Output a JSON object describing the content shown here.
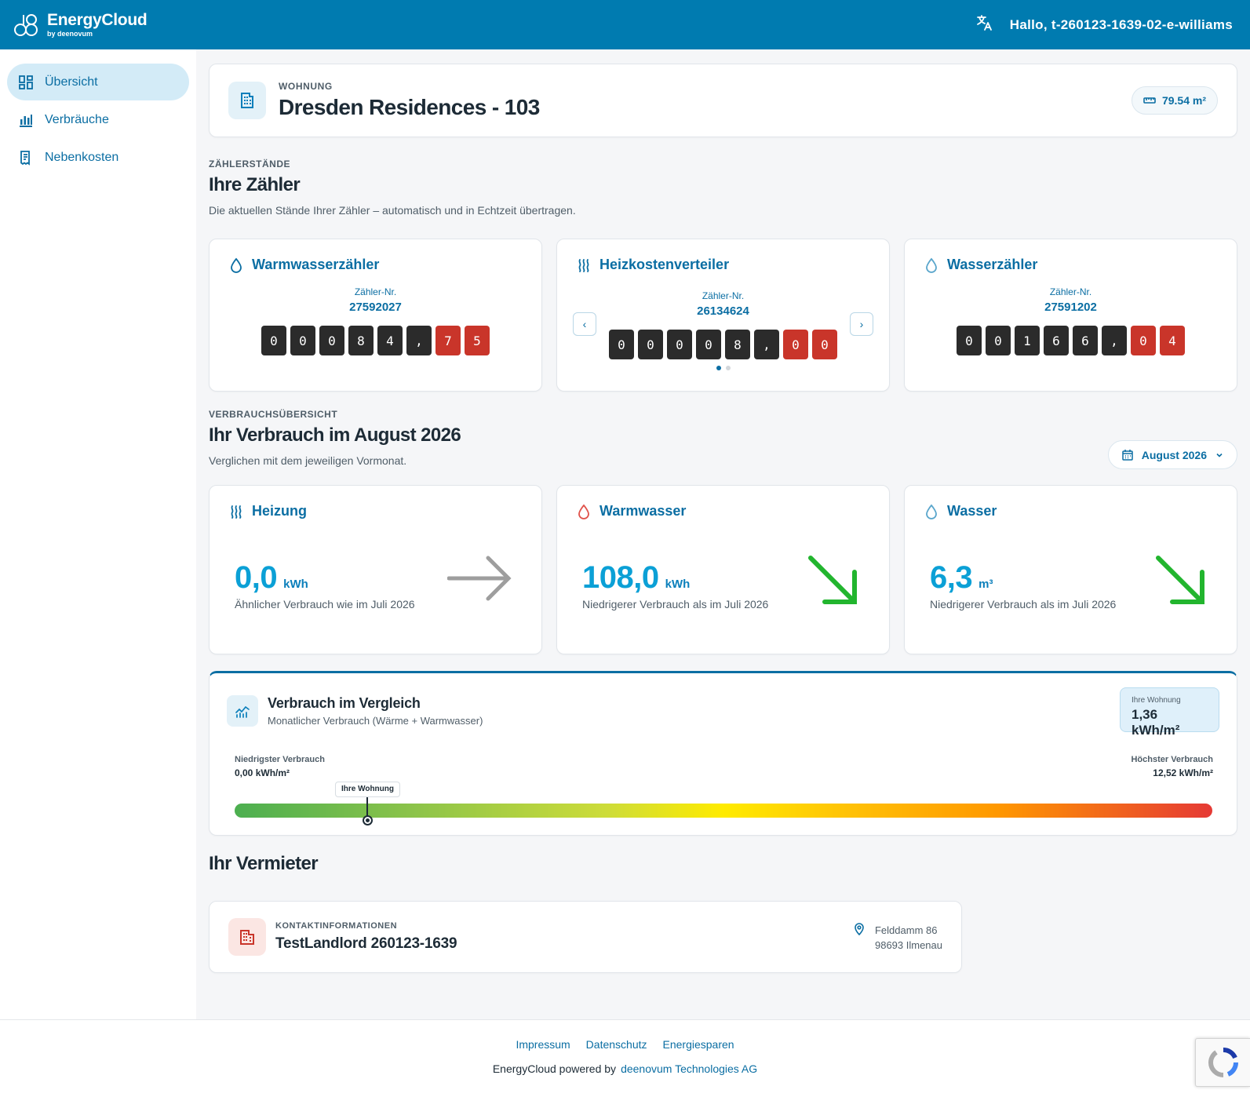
{
  "header": {
    "brand_name": "EnergyCloud",
    "brand_by": "by deenovum",
    "greeting": "Hallo, t-260123-1639-02-e-williams",
    "translate_icon": "translate-icon",
    "bg_color": "#007bb0"
  },
  "sidebar": {
    "items": [
      {
        "label": "Übersicht",
        "icon": "dashboard-icon",
        "active": true
      },
      {
        "label": "Verbräuche",
        "icon": "bar-chart-icon",
        "active": false
      },
      {
        "label": "Nebenkosten",
        "icon": "receipt-icon",
        "active": false
      }
    ]
  },
  "apartment": {
    "eyebrow": "WOHNUNG",
    "title": "Dresden Residences - 103",
    "area": "79.54 m²"
  },
  "meters_section": {
    "eyebrow": "ZÄHLERSTÄNDE",
    "title": "Ihre Zähler",
    "subtitle": "Die aktuellen Stände Ihrer Zähler – automatisch und in Echtzeit übertragen.",
    "number_label": "Zähler-Nr.",
    "meters": [
      {
        "title": "Warmwasserzähler",
        "number": "27592027",
        "digits": [
          "0",
          "0",
          "0",
          "8",
          "4",
          ",",
          "7",
          "5"
        ],
        "red_from": 6,
        "icon": "water-drop-icon"
      },
      {
        "title": "Heizkostenverteiler",
        "number": "26134624",
        "digits": [
          "0",
          "0",
          "0",
          "0",
          "8",
          ",",
          "0",
          "0"
        ],
        "red_from": 6,
        "icon": "heat-waves-icon"
      },
      {
        "title": "Wasserzähler",
        "number": "27591202",
        "digits": [
          "0",
          "0",
          "1",
          "6",
          "6",
          ",",
          "0",
          "4"
        ],
        "red_from": 6,
        "icon": "water-drop-icon"
      }
    ]
  },
  "consumption_section": {
    "eyebrow": "VERBRAUCHSÜBERSICHT",
    "title": "Ihr Verbrauch im August 2026",
    "subtitle": "Verglichen mit dem jeweiligen Vormonat.",
    "month_select": "August 2026",
    "cards": [
      {
        "title": "Heizung",
        "value": "0,0",
        "unit": "kWh",
        "note": "Ähnlicher Verbrauch wie im Juli 2026",
        "trend": "flat",
        "trend_color": "#9e9e9e"
      },
      {
        "title": "Warmwasser",
        "value": "108,0",
        "unit": "kWh",
        "note": "Niedrigerer Verbrauch als im Juli 2026",
        "trend": "down",
        "trend_color": "#22b52e"
      },
      {
        "title": "Wasser",
        "value": "6,3",
        "unit": "m³",
        "note": "Niedrigerer Verbrauch als im Juli 2026",
        "trend": "down",
        "trend_color": "#22b52e"
      }
    ]
  },
  "comparison": {
    "title": "Verbrauch im Vergleich",
    "subtitle": "Monatlicher Verbrauch (Wärme + Warmwasser)",
    "badge_label": "Ihre Wohnung",
    "badge_value": "1,36 kWh/m²",
    "min_label": "Niedrigster Verbrauch",
    "min_value": "0,00 kWh/m²",
    "max_label": "Höchster Verbrauch",
    "max_value": "12,52 kWh/m²",
    "marker_label": "Ihre Wohnung",
    "marker_fraction": 0.136
  },
  "landlord": {
    "section_title": "Ihr Vermieter",
    "eyebrow": "KONTAKTINFORMATIONEN",
    "name": "TestLandlord 260123-1639",
    "street": "Felddamm 86",
    "city": "98693 Ilmenau"
  },
  "footer": {
    "links": [
      "Impressum",
      "Datenschutz",
      "Energiesparen"
    ],
    "powered_by": "EnergyCloud powered by",
    "company": "deenovum Technologies AG"
  }
}
